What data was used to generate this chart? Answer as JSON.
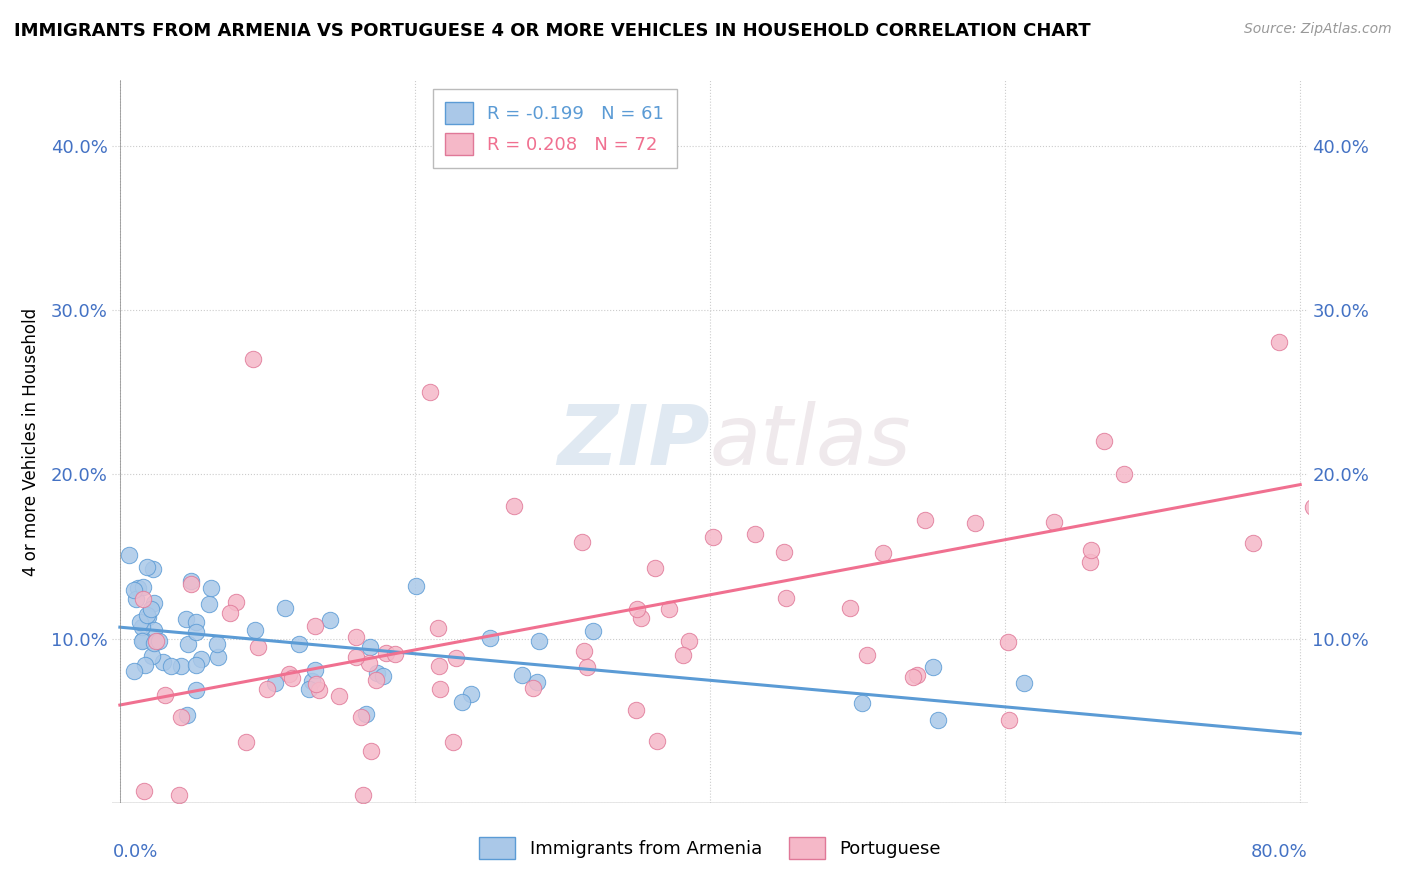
{
  "title": "IMMIGRANTS FROM ARMENIA VS PORTUGUESE 4 OR MORE VEHICLES IN HOUSEHOLD CORRELATION CHART",
  "source": "Source: ZipAtlas.com",
  "ylabel": "4 or more Vehicles in Household",
  "r_armenia": -0.199,
  "n_armenia": 61,
  "r_portuguese": 0.208,
  "n_portuguese": 72,
  "color_armenia": "#aac8e8",
  "color_portuguese": "#f5b8c8",
  "trendline_armenia": "#5b9bd5",
  "trendline_portuguese": "#f07090",
  "legend_armenia": "Immigrants from Armenia",
  "legend_portuguese": "Portuguese",
  "watermark_zip": "ZIP",
  "watermark_atlas": "atlas",
  "xmin": 0.0,
  "xmax": 0.8,
  "ymin": 0.0,
  "ymax": 0.44,
  "ytick_vals": [
    0.0,
    0.1,
    0.2,
    0.3,
    0.4
  ],
  "ytick_labels": [
    "",
    "10.0%",
    "20.0%",
    "30.0%",
    "40.0%"
  ],
  "xtick_vals": [
    0.0,
    0.2,
    0.4,
    0.6,
    0.8
  ]
}
